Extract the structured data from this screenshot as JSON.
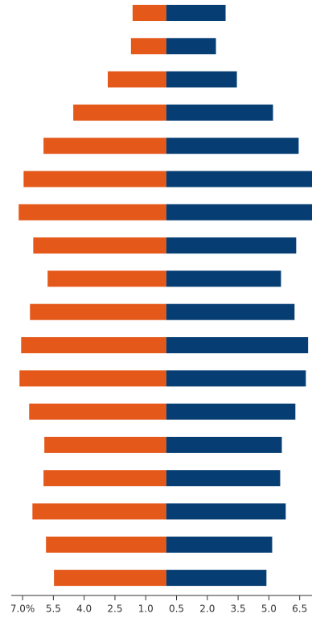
{
  "chart_data": {
    "type": "bar",
    "orientation": "horizontal",
    "categories": [
      null,
      null,
      null,
      null,
      null,
      null,
      null,
      null,
      null,
      null,
      null,
      null,
      null,
      null,
      null,
      null,
      null,
      null
    ],
    "series": [
      {
        "color": "#e4581a",
        "values": [
          -1.64,
          -1.72,
          -2.85,
          -4.53,
          -5.98,
          -6.95,
          -7.19,
          -6.48,
          -5.78,
          -6.64,
          -7.07,
          -7.15,
          -6.68,
          -5.94,
          -5.98,
          -6.52,
          -5.86,
          -5.47
        ]
      },
      {
        "color": "#063d73",
        "values": [
          2.89,
          2.42,
          3.44,
          5.2,
          6.45,
          7.1,
          7.1,
          6.33,
          5.59,
          6.25,
          6.91,
          6.8,
          6.29,
          5.63,
          5.55,
          5.82,
          5.16,
          4.88
        ]
      }
    ],
    "xlim": [
      -8.1,
      7.1
    ],
    "xticks": [
      {
        "value": -7,
        "label": "7.0%"
      },
      {
        "value": -5.5,
        "label": "5.5"
      },
      {
        "value": -4,
        "label": "4.0"
      },
      {
        "value": -2.5,
        "label": "2.5"
      },
      {
        "value": -1,
        "label": "1.0"
      },
      {
        "value": 0.5,
        "label": "0.5"
      },
      {
        "value": 2,
        "label": "2.0"
      },
      {
        "value": 3.5,
        "label": "3.5"
      },
      {
        "value": 5,
        "label": "5.0"
      },
      {
        "value": 6.5,
        "label": "6.5"
      }
    ]
  }
}
